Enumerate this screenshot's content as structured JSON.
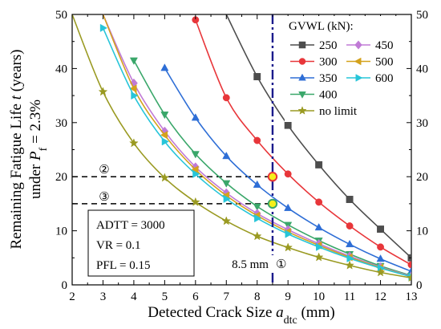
{
  "chart_data": {
    "type": "line",
    "xlabel_main": "Detected Crack Size ",
    "xlabel_var": "a",
    "xlabel_sub": "dtc",
    "xlabel_unit": " (mm)",
    "ylabel_line1_pre": "Remaining Fatigue Life ",
    "ylabel_line1_var": "t",
    "ylabel_line1_unit": " (years)",
    "ylabel_line2_pre": "under ",
    "ylabel_line2_var": "P",
    "ylabel_line2_sub": "f",
    "ylabel_line2_post": " = 2.3%",
    "xlim": [
      2,
      13
    ],
    "ylim": [
      0,
      50
    ],
    "xticks": [
      2,
      3,
      4,
      5,
      6,
      7,
      8,
      9,
      10,
      11,
      12,
      13
    ],
    "yticks": [
      0,
      10,
      20,
      30,
      40,
      50
    ],
    "legend_title": "GVWL (kN):",
    "legend_position": "top-right",
    "series": [
      {
        "name": "250",
        "color": "#4d4d4d",
        "marker": "square",
        "x": [
          7,
          8,
          9,
          10,
          11,
          12,
          13
        ],
        "y": [
          50,
          38.5,
          29.5,
          22.2,
          15.8,
          10.3,
          5.0
        ]
      },
      {
        "name": "300",
        "color": "#e8363a",
        "marker": "circle",
        "x": [
          6,
          7,
          8,
          9,
          10,
          11,
          12,
          13
        ],
        "y": [
          49,
          34.6,
          26.7,
          20.5,
          15.3,
          10.9,
          7.0,
          3.7
        ]
      },
      {
        "name": "350",
        "color": "#2e6ed6",
        "marker": "triangle-up",
        "x": [
          5,
          6,
          7,
          8,
          9,
          10,
          11,
          12,
          13
        ],
        "y": [
          40.1,
          30.9,
          23.8,
          18.5,
          14.2,
          10.6,
          7.5,
          4.8,
          2.5
        ]
      },
      {
        "name": "400",
        "color": "#3aa76a",
        "marker": "triangle-down",
        "x": [
          4,
          5,
          6,
          7,
          8,
          9,
          10,
          11,
          12,
          13
        ],
        "y": [
          41.5,
          31.5,
          24.2,
          18.8,
          14.5,
          11.1,
          8.2,
          5.7,
          3.5,
          1.7
        ]
      },
      {
        "name": "450",
        "color": "#c07ad6",
        "marker": "diamond",
        "x": [
          3,
          4,
          5,
          6,
          7,
          8,
          9,
          10,
          11,
          12,
          13
        ],
        "y": [
          50,
          37.3,
          28.4,
          21.8,
          17.0,
          13.2,
          10.2,
          7.6,
          5.3,
          3.3,
          1.6
        ]
      },
      {
        "name": "500",
        "color": "#d4a21c",
        "marker": "triangle-left",
        "x": [
          3,
          4,
          5,
          6,
          7,
          8,
          9,
          10,
          11,
          12,
          13
        ],
        "y": [
          50,
          36.3,
          27.7,
          21.3,
          16.5,
          12.8,
          9.8,
          7.3,
          5.1,
          3.2,
          1.5
        ]
      },
      {
        "name": "600",
        "color": "#27c5d9",
        "marker": "triangle-right",
        "x": [
          3,
          4,
          5,
          6,
          7,
          8,
          9,
          10,
          11,
          12,
          13
        ],
        "y": [
          47.5,
          35.0,
          26.5,
          20.5,
          15.9,
          12.3,
          9.4,
          7.0,
          4.9,
          3.1,
          1.5
        ]
      },
      {
        "name": "no limit",
        "color": "#9a9a22",
        "marker": "star",
        "x": [
          2,
          3,
          4,
          5,
          6,
          7,
          8,
          9,
          10,
          11,
          12,
          13
        ],
        "y": [
          50,
          35.7,
          26.2,
          19.8,
          15.3,
          11.8,
          9.0,
          6.9,
          5.1,
          3.6,
          2.3,
          1.3
        ]
      }
    ],
    "crack_line": {
      "x": 8.5,
      "label": "8.5 mm",
      "marker": "①"
    },
    "reference_lines": [
      {
        "y": 20,
        "label": "②"
      },
      {
        "y": 15,
        "label": "③"
      }
    ],
    "highlight_points": [
      {
        "x": 8.5,
        "y": 20,
        "color": "#e8363a"
      },
      {
        "x": 8.5,
        "y": 15,
        "color": "#3aa76a"
      }
    ],
    "params_box": [
      "ADTT = 3000",
      "VR = 0.1",
      "PFL = 0.15"
    ]
  }
}
